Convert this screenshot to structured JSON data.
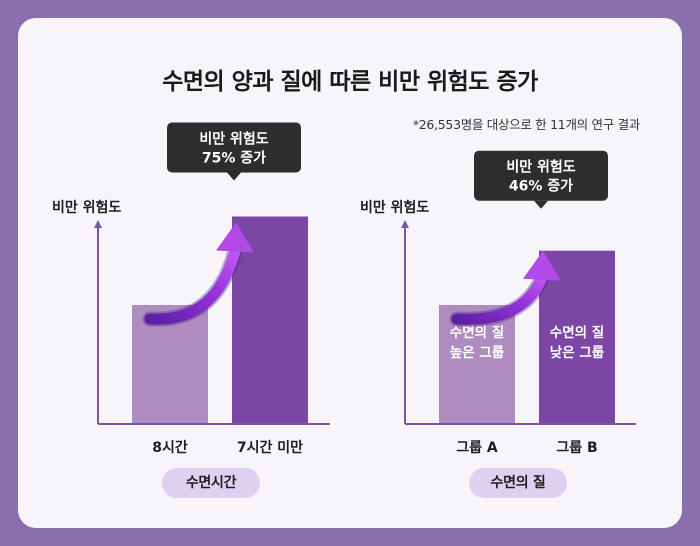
{
  "title": "수면의 양과 질에 따른 비만 위험도 증가",
  "footnote": "*26,553명을 대상으로 한 11개의 연구 결과",
  "colors": {
    "background": "#8a6fae",
    "card": "#f7f5fa",
    "bar_light": "#ae8cc0",
    "bar_dark": "#7b46a4",
    "axis": "#7b55a5",
    "callout": "#2d2d2d",
    "arrow": "#a53fe0",
    "pill": "#ddd0f0"
  },
  "chart_data": [
    {
      "type": "bar",
      "ylabel": "비만 위험도",
      "xlabel": "수면시간",
      "categories": [
        "8시간",
        "7시간 미만"
      ],
      "values": [
        1.0,
        1.75
      ],
      "bar_labels": [
        [
          "",
          ""
        ],
        [
          "",
          ""
        ]
      ],
      "callout": [
        "비만 위험도",
        "75% 증가"
      ],
      "arrow": "trend-up-arrow-icon"
    },
    {
      "type": "bar",
      "ylabel": "비만 위험도",
      "xlabel": "수면의 질",
      "categories": [
        "그룹 A",
        "그룹 B"
      ],
      "values": [
        1.0,
        1.46
      ],
      "bar_labels": [
        [
          "수면의 질",
          "높은 그룹"
        ],
        [
          "수면의 질",
          "낮은 그룹"
        ]
      ],
      "callout": [
        "비만 위험도",
        "46% 증가"
      ],
      "arrow": "trend-up-arrow-icon"
    }
  ]
}
